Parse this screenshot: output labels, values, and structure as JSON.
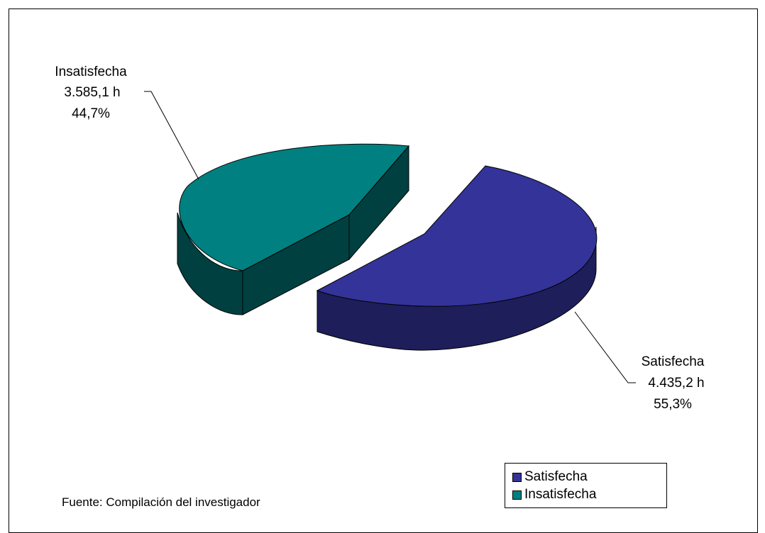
{
  "chart_data": {
    "type": "pie",
    "style": "3d-exploded",
    "unit": "h",
    "slices": [
      {
        "name": "Satisfecha",
        "value_text": "4.435,2 h",
        "value": 4435.2,
        "percent_text": "55,3%",
        "percent": 55.3,
        "color": "#333399",
        "side_color": "#1e1e5b"
      },
      {
        "name": "Insatisfecha",
        "value_text": "3.585,1 h",
        "value": 3585.1,
        "percent_text": "44,7%",
        "percent": 44.7,
        "color": "#008080",
        "side_color": "#004040"
      }
    ],
    "legend": {
      "position": "bottom-right",
      "items": [
        "Satisfecha",
        "Insatisfecha"
      ]
    }
  },
  "source_note": "Fuente: Compilación del investigador"
}
